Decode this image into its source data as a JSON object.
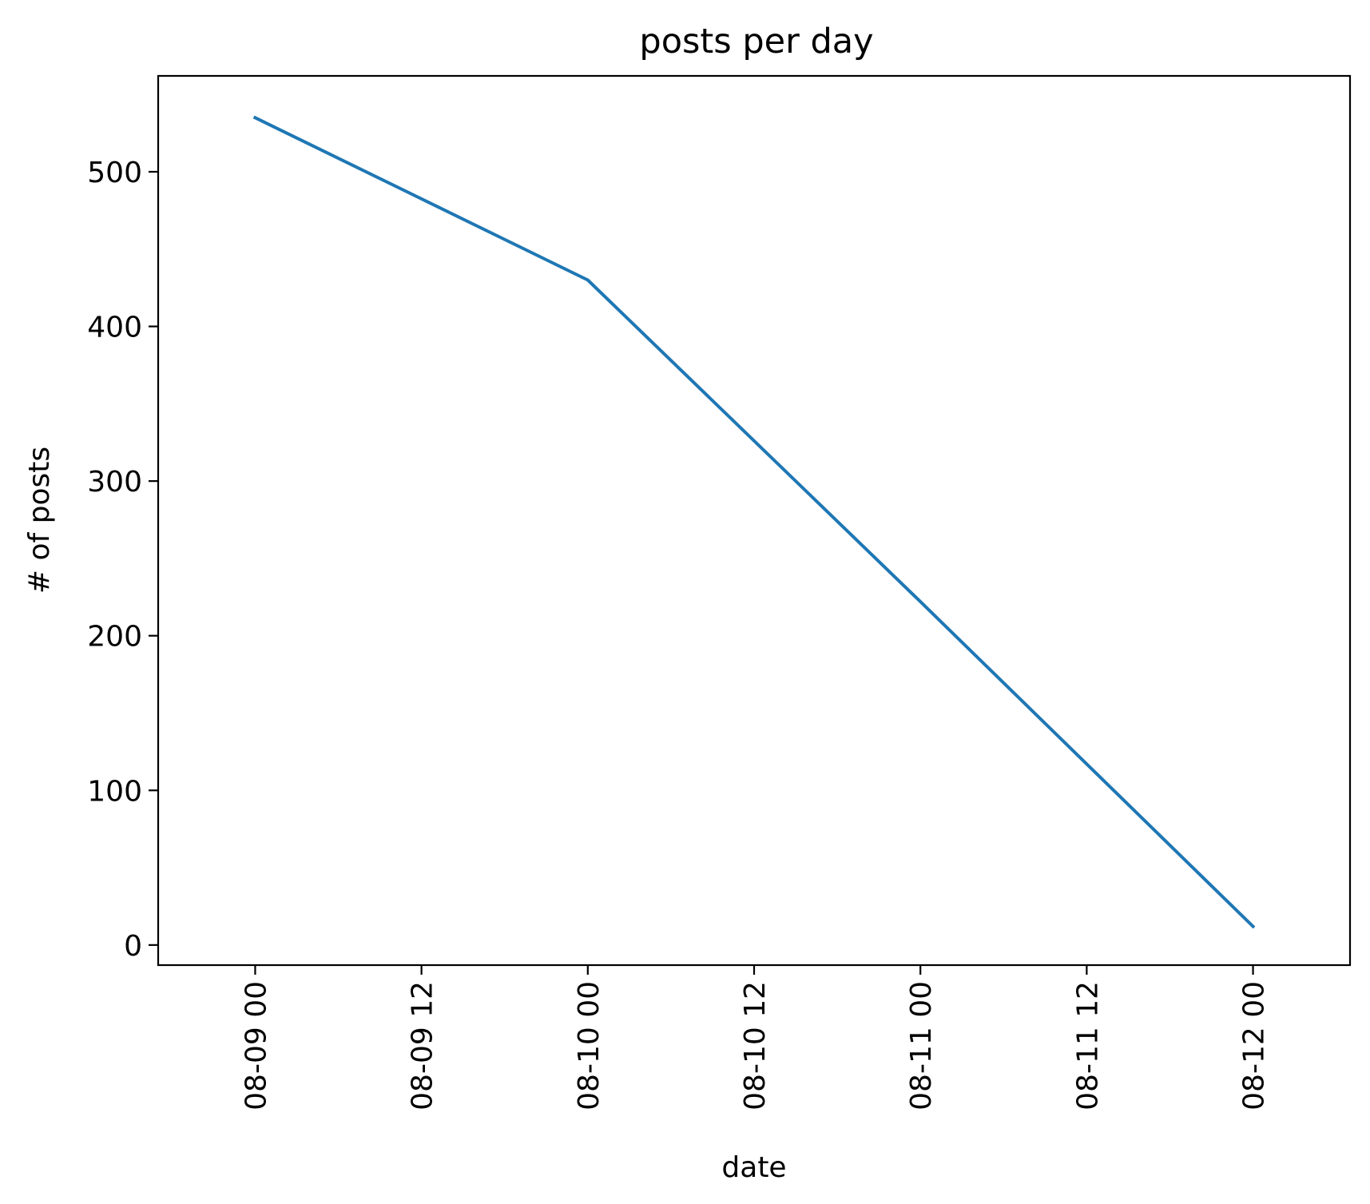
{
  "chart_data": {
    "type": "line",
    "title": "posts per day",
    "xlabel": "date",
    "ylabel": "# of posts",
    "x_ticks": [
      {
        "value": "2019-08-09 00:00",
        "label": "08-09 00"
      },
      {
        "value": "2019-08-09 12:00",
        "label": "08-09 12"
      },
      {
        "value": "2019-08-10 00:00",
        "label": "08-10 00"
      },
      {
        "value": "2019-08-10 12:00",
        "label": "08-10 12"
      },
      {
        "value": "2019-08-11 00:00",
        "label": "08-11 00"
      },
      {
        "value": "2019-08-11 12:00",
        "label": "08-11 12"
      },
      {
        "value": "2019-08-12 00:00",
        "label": "08-12 00"
      }
    ],
    "y_ticks": [
      0,
      100,
      200,
      300,
      400,
      500
    ],
    "xlim": [
      "2019-08-08 17:00",
      "2019-08-12 07:00"
    ],
    "ylim": [
      -13,
      562
    ],
    "grid": false,
    "series": [
      {
        "color": "#1f77b4",
        "x": [
          "2019-08-09 00:00",
          "2019-08-10 00:00",
          "2019-08-11 00:00",
          "2019-08-12 00:00"
        ],
        "values": [
          535,
          430,
          222,
          12
        ]
      }
    ]
  }
}
